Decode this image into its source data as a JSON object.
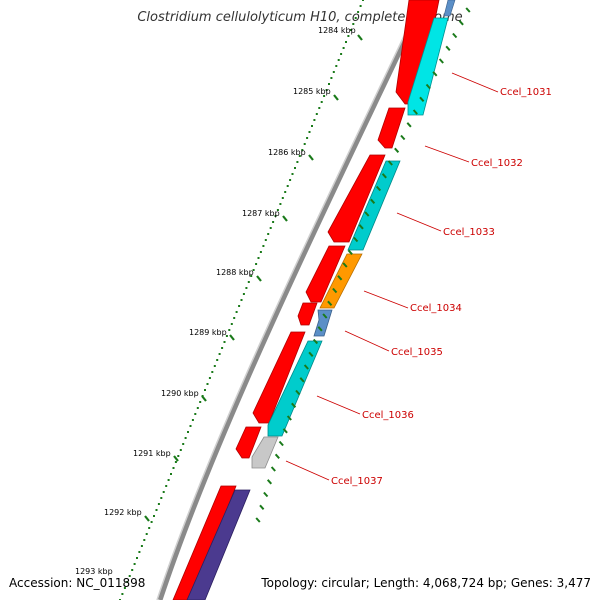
{
  "title": "Clostridium cellulolyticum H10, complete genome",
  "accession": "Accession: NC_011898",
  "summary": "Topology: circular; Length: 4,068,724 bp; Genes: 3,477",
  "kbp_labels": [
    "1284 kbp",
    "1285 kbp",
    "1286 kbp",
    "1287 kbp",
    "1288 kbp",
    "1289 kbp",
    "1290 kbp",
    "1291 kbp",
    "1292 kbp",
    "1293 kbp"
  ],
  "gene_labels": [
    "Ccel_1031",
    "Ccel_1032",
    "Ccel_1033",
    "Ccel_1034",
    "Ccel_1035",
    "Ccel_1036",
    "Ccel_1037"
  ],
  "colors": {
    "backbone": "#8a8a8a",
    "cds": "#ff0000",
    "cyan_feature": "#00e5e5",
    "orange_feature": "#ff9900",
    "blue_feature": "#5b8fc7",
    "gray_feature": "#c8c8c8",
    "purple_feature": "#4b3a8f",
    "tick": "#1a7a1a",
    "label": "#cc0000"
  }
}
